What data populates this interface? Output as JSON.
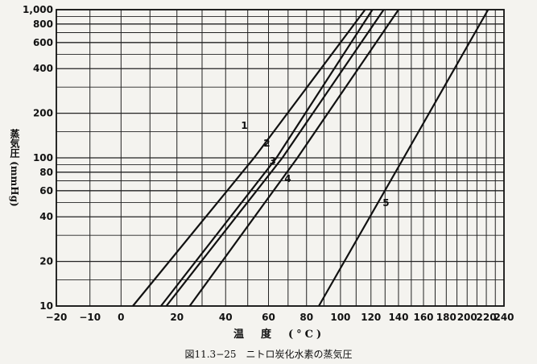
{
  "chart_data": {
    "type": "line",
    "title": "",
    "caption": "図11.3−25　ニトロ炭化水素の蒸気圧",
    "xlabel": "温　度　(°C)",
    "ylabel": "蒸気圧 (mmHg)",
    "x_axis": {
      "scale": "reciprocal",
      "range": [
        -20,
        240
      ],
      "tick_labels": [
        "-20",
        "-10",
        "0",
        "20",
        "40",
        "60",
        "80",
        "100",
        "120",
        "140",
        "160",
        "180",
        "200",
        "220",
        "240"
      ]
    },
    "y_axis": {
      "scale": "log",
      "range": [
        10,
        1000
      ],
      "tick_labels": [
        "10",
        "20",
        "40",
        "60",
        "80",
        "100",
        "200",
        "400",
        "600",
        "800",
        "1,000"
      ]
    },
    "grid": true,
    "series": [
      {
        "name": "1",
        "points": [
          [
            4,
            10
          ],
          [
            53,
            100
          ],
          [
            116,
            1000
          ]
        ]
      },
      {
        "name": "2",
        "points": [
          [
            14,
            10
          ],
          [
            64,
            100
          ],
          [
            121,
            1000
          ]
        ]
      },
      {
        "name": "3",
        "points": [
          [
            16,
            10
          ],
          [
            67,
            100
          ],
          [
            129,
            1000
          ]
        ]
      },
      {
        "name": "4",
        "points": [
          [
            25,
            10
          ],
          [
            75,
            100
          ],
          [
            140,
            1000
          ]
        ]
      },
      {
        "name": "5",
        "points": [
          [
            87,
            10
          ],
          [
            144,
            100
          ],
          [
            222,
            1000
          ]
        ]
      }
    ]
  }
}
